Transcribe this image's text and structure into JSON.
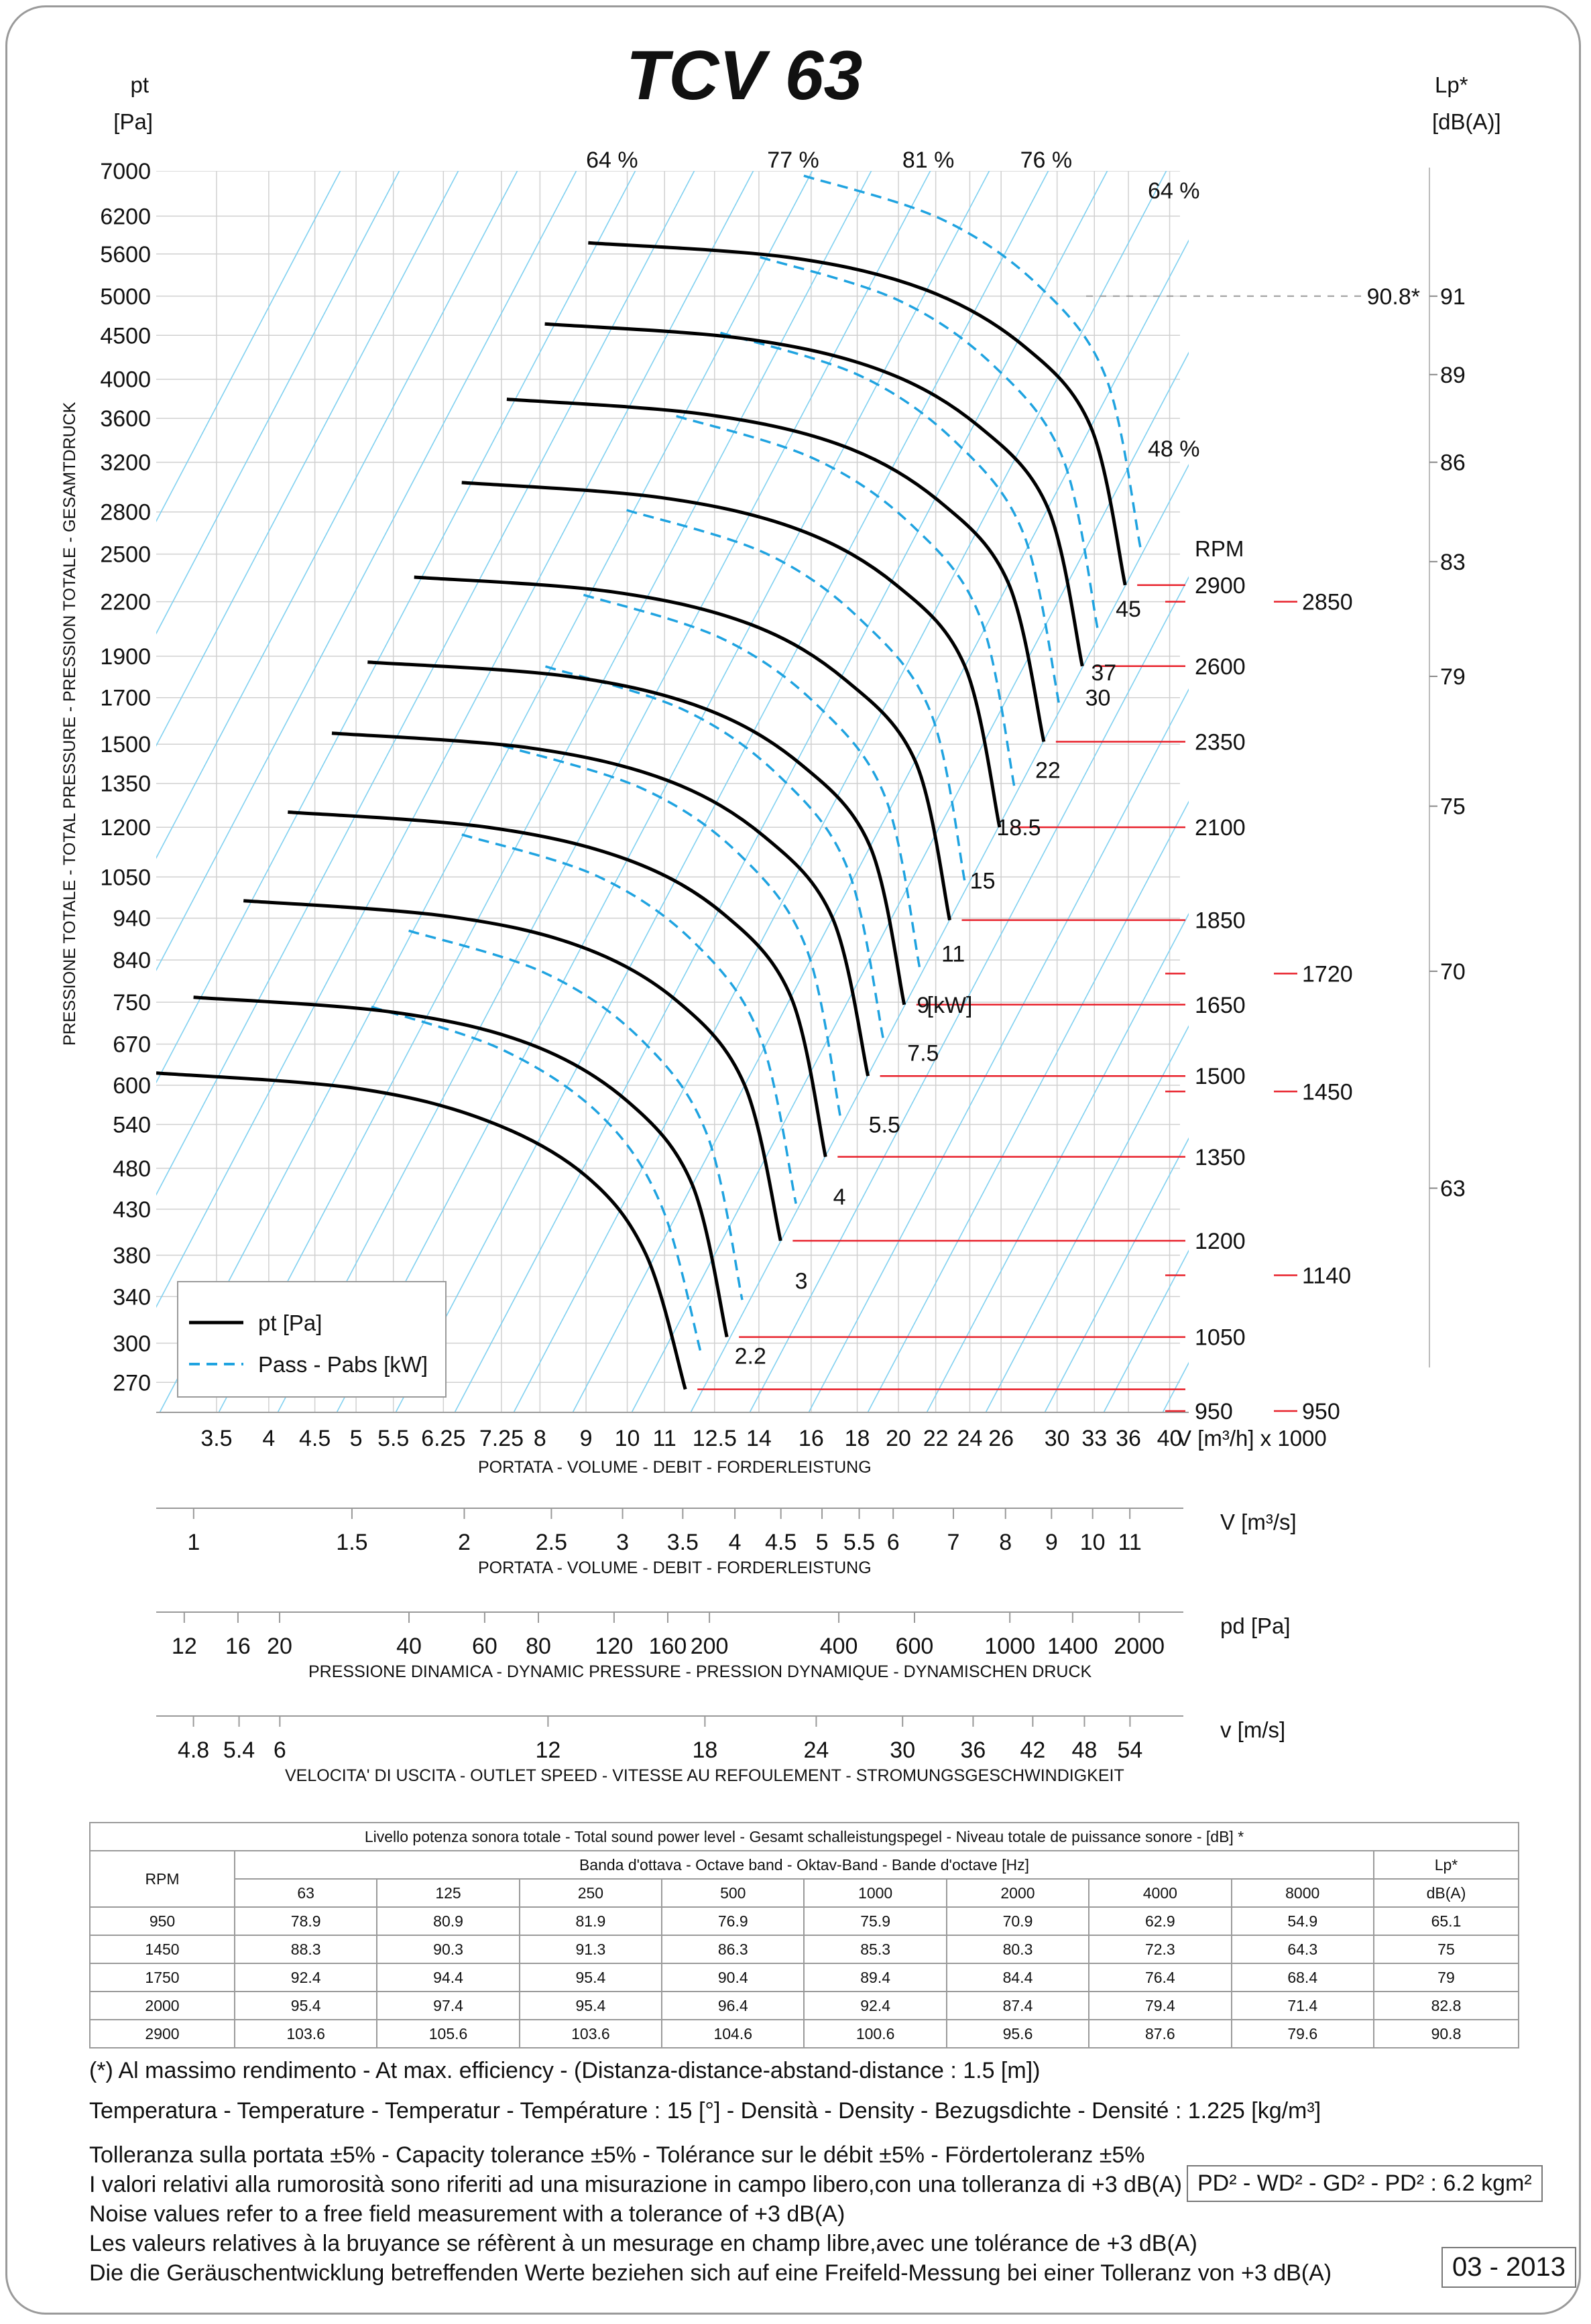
{
  "title": "TCV 63",
  "chart_data": {
    "type": "line",
    "title": "TCV 63",
    "y_axis": {
      "label_top": "pt",
      "unit": "[Pa]",
      "side_label": "PRESSIONE TOTALE - TOTAL PRESSURE - PRESSION TOTALE - GESAMTDRUCK",
      "scale": "log",
      "range": [
        250,
        7000
      ],
      "ticks": [
        "7000",
        "6200",
        "5600",
        "5000",
        "4500",
        "4000",
        "3600",
        "3200",
        "2800",
        "2500",
        "2200",
        "1900",
        "1700",
        "1500",
        "1350",
        "1200",
        "1050",
        "940",
        "840",
        "750",
        "670",
        "600",
        "540",
        "480",
        "430",
        "380",
        "340",
        "300",
        "270"
      ]
    },
    "y2_axis": {
      "label_top": "Lp*",
      "unit": "[dB(A)]",
      "ticks": [
        {
          "label": "91",
          "at_pt": 5000
        },
        {
          "label": "89",
          "at_pt": 4050
        },
        {
          "label": "86",
          "at_pt": 3200
        },
        {
          "label": "83",
          "at_pt": 2450
        },
        {
          "label": "79",
          "at_pt": 1800
        },
        {
          "label": "75",
          "at_pt": 1270
        },
        {
          "label": "70",
          "at_pt": 815
        },
        {
          "label": "63",
          "at_pt": 455
        }
      ],
      "marker": "90.8*"
    },
    "x_axis": {
      "unit": "V [m³/h]  x 1000",
      "caption": "PORTATA - VOLUME - DEBIT - FORDERLEISTUNG",
      "scale": "log",
      "range": [
        3.0,
        42
      ],
      "ticks": [
        "3.5",
        "4",
        "4.5",
        "5",
        "5.5",
        "6.25",
        "7.25",
        "8",
        "9",
        "10",
        "11",
        "12.5",
        "14",
        "16",
        "18",
        "20",
        "22",
        "24",
        "26",
        "30",
        "33",
        "36",
        "40"
      ]
    },
    "aux_scales": [
      {
        "unit": "V  [m³/s]",
        "caption": "PORTATA - VOLUME - DEBIT - FORDERLEISTUNG",
        "ticks": [
          "1",
          "1.5",
          "2",
          "2.5",
          "3",
          "3.5",
          "4",
          "4.5",
          "5",
          "5.5",
          "6",
          "7",
          "8",
          "9",
          "10",
          "11"
        ]
      },
      {
        "unit": "pd  [Pa]",
        "caption": "PRESSIONE DINAMICA - DYNAMIC PRESSURE - PRESSION DYNAMIQUE - DYNAMISCHEN DRUCK",
        "ticks": [
          "12",
          "16",
          "20",
          "40",
          "60",
          "80",
          "120",
          "160",
          "200",
          "400",
          "600",
          "1000",
          "1400",
          "2000"
        ]
      },
      {
        "unit": "v  [m/s]",
        "caption": "VELOCITA' DI USCITA - OUTLET SPEED - VITESSE AU REFOULEMENT - STROMUNGSGESCHWINDIGKEIT",
        "ticks": [
          "4.8",
          "5.4",
          "6",
          "12",
          "18",
          "24",
          "30",
          "36",
          "42",
          "48",
          "54"
        ]
      }
    ],
    "legend": {
      "placement": "bottom-left",
      "pt": "pt [Pa]",
      "power": "Pass - Pabs [kW]"
    },
    "rpm_header": "RPM",
    "series": [
      {
        "rpm": "950",
        "x": [
          3.0,
          5.0,
          7.0,
          9.0,
          10.5,
          11.6
        ],
        "y": [
          620,
          595,
          545,
          470,
          380,
          265
        ]
      },
      {
        "rpm": "1050",
        "x": [
          3.3,
          5.5,
          7.8,
          10.0,
          11.8,
          12.9
        ],
        "y": [
          760,
          730,
          670,
          575,
          460,
          305
        ]
      },
      {
        "rpm": "1200",
        "x": [
          3.75,
          6.3,
          8.9,
          11.4,
          13.5,
          14.8
        ],
        "y": [
          985,
          945,
          870,
          750,
          600,
          395
        ]
      },
      {
        "rpm": "1350",
        "x": [
          4.2,
          7.0,
          10.0,
          12.8,
          15.2,
          16.6
        ],
        "y": [
          1250,
          1200,
          1100,
          950,
          760,
          495
        ]
      },
      {
        "rpm": "1500",
        "x": [
          4.7,
          7.8,
          11.1,
          14.2,
          16.9,
          18.5
        ],
        "y": [
          1545,
          1485,
          1360,
          1170,
          940,
          615
        ]
      },
      {
        "rpm": "1650",
        "x": [
          5.15,
          8.6,
          12.2,
          15.6,
          18.6,
          20.3
        ],
        "y": [
          1870,
          1800,
          1650,
          1420,
          1140,
          745
        ]
      },
      {
        "rpm": "1850",
        "x": [
          5.8,
          9.6,
          13.7,
          17.5,
          20.9,
          22.8
        ],
        "y": [
          2350,
          2260,
          2070,
          1780,
          1430,
          935
        ]
      },
      {
        "rpm": "2100",
        "x": [
          6.55,
          10.9,
          15.5,
          19.9,
          23.7,
          25.9
        ],
        "y": [
          3030,
          2910,
          2670,
          2300,
          1850,
          1200
        ]
      },
      {
        "rpm": "2350",
        "x": [
          7.35,
          12.2,
          17.4,
          22.3,
          26.5,
          29.0
        ],
        "y": [
          3790,
          3640,
          3340,
          2870,
          2310,
          1510
        ]
      },
      {
        "rpm": "2600",
        "x": [
          8.1,
          13.5,
          19.2,
          24.6,
          29.3,
          32.0
        ],
        "y": [
          4640,
          4460,
          4090,
          3520,
          2830,
          1850
        ]
      },
      {
        "rpm": "2900",
        "x": [
          9.05,
          15.1,
          21.4,
          27.5,
          32.7,
          35.7
        ],
        "y": [
          5770,
          5550,
          5090,
          4380,
          3520,
          2300
        ]
      }
    ],
    "rpm_labels": [
      {
        "rpm": "2900",
        "pt": 2300
      },
      {
        "rpm": "2600",
        "pt": 1850
      },
      {
        "rpm": "2350",
        "pt": 1510
      },
      {
        "rpm": "2100",
        "pt": 1200
      },
      {
        "rpm": "1850",
        "pt": 935
      },
      {
        "rpm": "1650",
        "pt": 745
      },
      {
        "rpm": "1500",
        "pt": 615
      },
      {
        "rpm": "1350",
        "pt": 495
      },
      {
        "rpm": "1200",
        "pt": 395
      },
      {
        "rpm": "1050",
        "pt": 305
      },
      {
        "rpm": "950",
        "pt": 250
      }
    ],
    "rpm_extra": [
      {
        "rpm": "2850",
        "pt": 2200
      },
      {
        "rpm": "1720",
        "pt": 810
      },
      {
        "rpm": "1450",
        "pt": 590
      },
      {
        "rpm": "1140",
        "pt": 360
      },
      {
        "rpm": "950",
        "pt": 250
      }
    ],
    "kw_labels": [
      {
        "label": "45",
        "x": 36.0,
        "pt": 2160
      },
      {
        "label": "37",
        "x": 33.8,
        "pt": 1820
      },
      {
        "label": "30",
        "x": 33.3,
        "pt": 1700
      },
      {
        "label": "22",
        "x": 29.3,
        "pt": 1400
      },
      {
        "label": "18.5",
        "x": 27.2,
        "pt": 1200
      },
      {
        "label": "15",
        "x": 24.8,
        "pt": 1040
      },
      {
        "label": "11",
        "x": 23.0,
        "pt": 855
      },
      {
        "label": "9",
        "x": 21.3,
        "pt": 745
      },
      {
        "label": "[kW]",
        "x": 22.8,
        "pt": 745
      },
      {
        "label": "7.5",
        "x": 21.3,
        "pt": 655
      },
      {
        "label": "5.5",
        "x": 19.3,
        "pt": 540
      },
      {
        "label": "4",
        "x": 17.2,
        "pt": 445
      },
      {
        "label": "3",
        "x": 15.6,
        "pt": 355
      },
      {
        "label": "2.2",
        "x": 13.7,
        "pt": 290
      }
    ],
    "efficiency_labels": [
      {
        "label": "64 %",
        "x": 9.0,
        "pt": 7900
      },
      {
        "label": "77 %",
        "x": 14.3,
        "pt": 7900
      },
      {
        "label": "81 %",
        "x": 20.2,
        "pt": 7900
      },
      {
        "label": "76 %",
        "x": 27.3,
        "pt": 7900
      },
      {
        "label": "64 %",
        "x": 44.0,
        "pt": 6500
      },
      {
        "label": "48 %",
        "x": 44.0,
        "pt": 3250
      }
    ]
  },
  "sound_table": {
    "caption": "Livello potenza sonora totale - Total sound power level - Gesamt schalleistungspegel - Niveau totale de puissance sonore - [dB]   *",
    "band_caption": "Banda d'ottava - Octave band - Oktav-Band - Bande d'octave [Hz]",
    "rpm_header": "RPM",
    "lp_header": "Lp*",
    "lp_unit": "dB(A)",
    "bands": [
      "63",
      "125",
      "250",
      "500",
      "1000",
      "2000",
      "4000",
      "8000"
    ],
    "rows": [
      {
        "rpm": "950",
        "values": [
          "78.9",
          "80.9",
          "81.9",
          "76.9",
          "75.9",
          "70.9",
          "62.9",
          "54.9"
        ],
        "lp": "65.1"
      },
      {
        "rpm": "1450",
        "values": [
          "88.3",
          "90.3",
          "91.3",
          "86.3",
          "85.3",
          "80.3",
          "72.3",
          "64.3"
        ],
        "lp": "75"
      },
      {
        "rpm": "1750",
        "values": [
          "92.4",
          "94.4",
          "95.4",
          "90.4",
          "89.4",
          "84.4",
          "76.4",
          "68.4"
        ],
        "lp": "79"
      },
      {
        "rpm": "2000",
        "values": [
          "95.4",
          "97.4",
          "95.4",
          "96.4",
          "92.4",
          "87.4",
          "79.4",
          "71.4"
        ],
        "lp": "82.8"
      },
      {
        "rpm": "2900",
        "values": [
          "103.6",
          "105.6",
          "103.6",
          "104.6",
          "100.6",
          "95.6",
          "87.6",
          "79.6"
        ],
        "lp": "90.8"
      }
    ]
  },
  "notes": {
    "efficiency": "(*) Al massimo rendimento - At max. efficiency - (Distanza-distance-abstand-distance : 1.5 [m])",
    "conditions": "Temperatura - Temperature - Temperatur - Température : 15 [°]  -  Densità - Density - Bezugsdichte - Densité : 1.225 [kg/m³]",
    "lines": [
      "Tolleranza sulla portata  ±5% - Capacity tolerance ±5% - Tolérance sur le débit ±5% - Fördertoleranz ±5%",
      "I valori relativi alla rumorosità sono riferiti ad una misurazione in campo libero,con una tolleranza di +3 dB(A)",
      "Noise values refer to a free field measurement with a tolerance of +3 dB(A)",
      "Les valeurs relatives à la bruyance se réfèrent à un mesurage en champ libre,avec une tolérance de +3 dB(A)",
      "Die die Geräuschentwicklung betreffenden Werte beziehen sich auf eine Freifeld-Messung bei einer Tolleranz von +3 dB(A)"
    ],
    "pd2": "PD² -  WD² - GD² -  PD²  :  6.2 kgm²",
    "date": "03 - 2013"
  },
  "colors": {
    "curve": "#000000",
    "power": "#1fa3e0",
    "grid": "#d0d0d0",
    "diag": "#7fd0f0",
    "rpm_line": "#e8202a",
    "frame": "#9a9a9a"
  }
}
